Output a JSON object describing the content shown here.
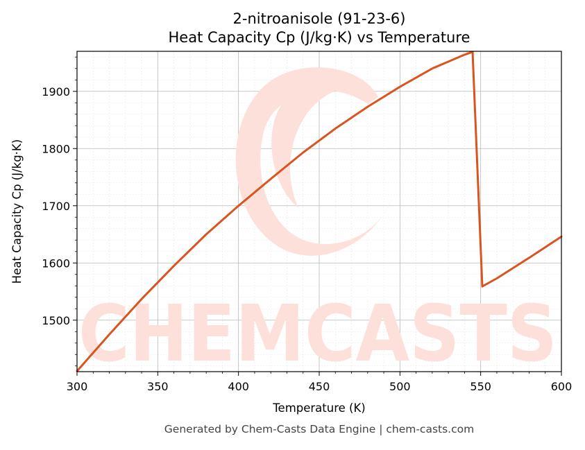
{
  "chart_data": {
    "type": "line",
    "title": "2-nitroanisole (91-23-6)",
    "subtitle": "Heat Capacity Cp (J/kg·K) vs Temperature",
    "xlabel": "Temperature (K)",
    "ylabel": "Heat Capacity Cp (J/kg·K)",
    "xlim": [
      300,
      600
    ],
    "ylim": [
      1410,
      1970
    ],
    "xticks": [
      300,
      350,
      400,
      450,
      500,
      550,
      600
    ],
    "yticks": [
      1500,
      1600,
      1700,
      1800,
      1900
    ],
    "grid": true,
    "legend": "none",
    "series": [
      {
        "color": "#d9541e",
        "x": [
          300,
          320,
          340,
          360,
          380,
          400,
          420,
          440,
          460,
          480,
          500,
          520,
          540,
          545,
          551,
          560,
          580,
          600
        ],
        "y": [
          1411,
          1475,
          1537,
          1595,
          1650,
          1700,
          1747,
          1793,
          1835,
          1873,
          1908,
          1940,
          1964,
          1969,
          1559,
          1573,
          1609,
          1646
        ]
      }
    ]
  },
  "watermark": "CHEMCASTS",
  "footer": "Generated by Chem-Casts Data Engine | chem-casts.com"
}
